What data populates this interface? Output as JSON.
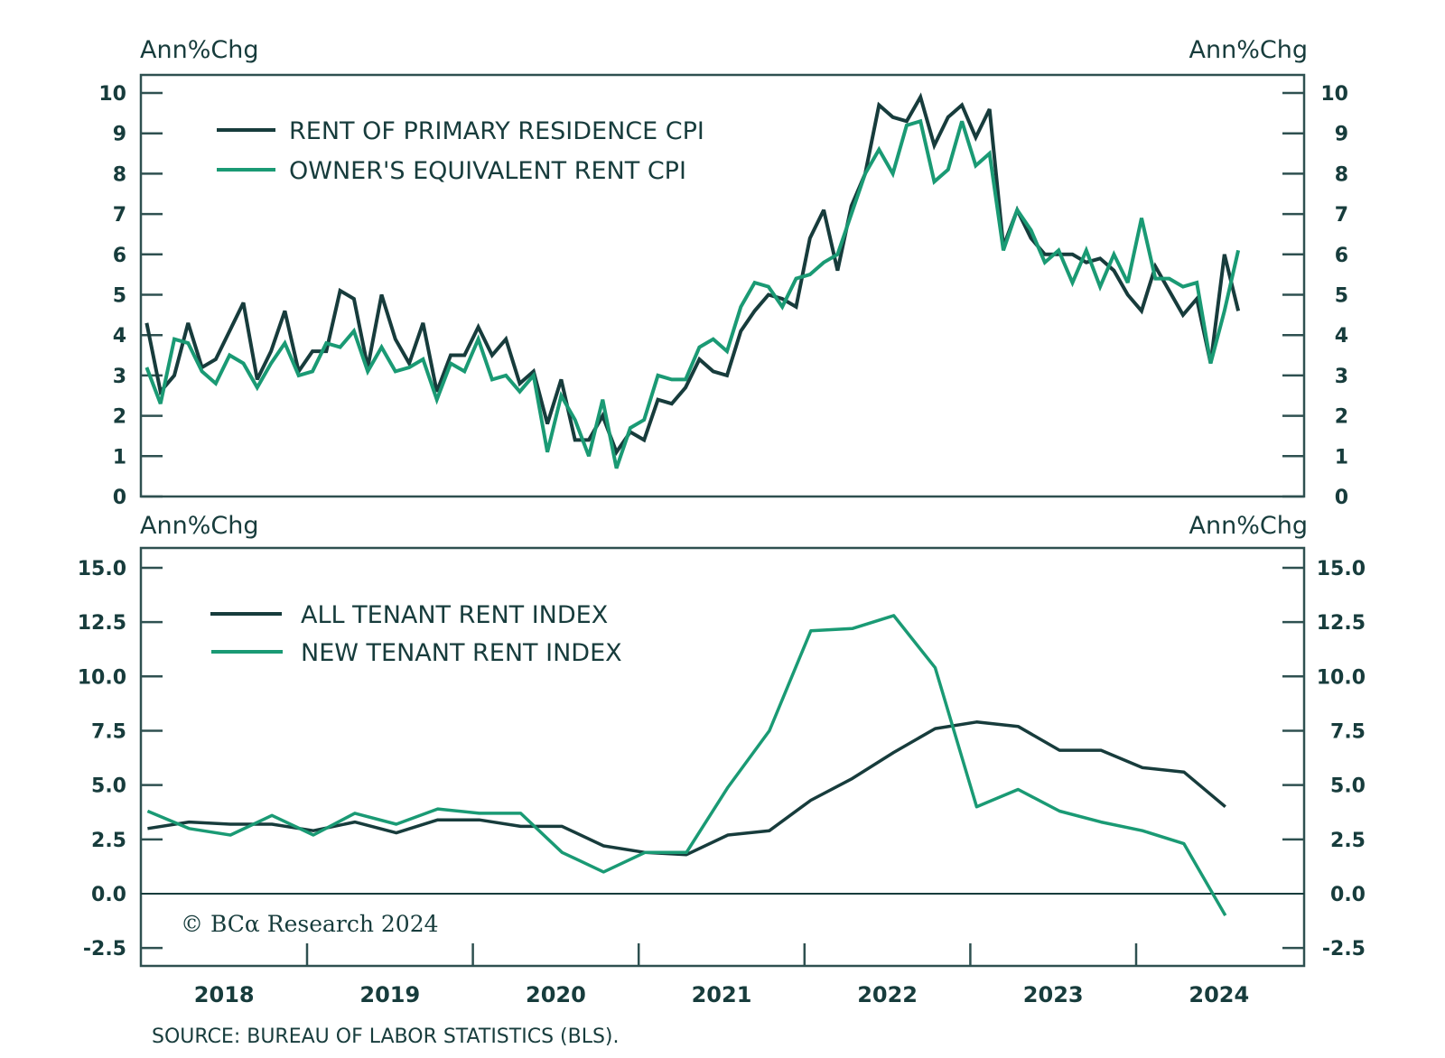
{
  "colors": {
    "dark": "#173c3c",
    "green": "#1a9a74",
    "frame": "#2e5050"
  },
  "source": "SOURCE: BUREAU OF LABOR STATISTICS (BLS).",
  "copyright": "© BCα Research 2024",
  "chart_data": [
    {
      "type": "line",
      "title": "",
      "ylabel_left": "Ann%Chg",
      "ylabel_right": "Ann%Chg",
      "ylim": [
        0,
        10
      ],
      "yticks": [
        0,
        1,
        2,
        3,
        4,
        5,
        6,
        7,
        8,
        9,
        10
      ],
      "ytick_labels": [
        "0",
        "1",
        "2",
        "3",
        "4",
        "5",
        "6",
        "7",
        "8",
        "9",
        "10"
      ],
      "frequency": "monthly",
      "x_start": "2018-01",
      "grid": false,
      "legend_position": "top-left",
      "series": [
        {
          "name": "RENT OF PRIMARY RESIDENCE CPI",
          "color": "#173c3c",
          "values": [
            4.3,
            2.6,
            3.0,
            4.3,
            3.2,
            3.4,
            4.1,
            4.8,
            2.9,
            3.6,
            4.6,
            3.1,
            3.6,
            3.6,
            5.1,
            4.9,
            3.2,
            5.0,
            3.9,
            3.3,
            4.3,
            2.6,
            3.5,
            3.5,
            4.2,
            3.5,
            3.9,
            2.8,
            3.1,
            1.8,
            2.9,
            1.4,
            1.4,
            2.0,
            1.1,
            1.6,
            1.4,
            2.4,
            2.3,
            2.7,
            3.4,
            3.1,
            3.0,
            4.1,
            4.6,
            5.0,
            4.9,
            4.7,
            6.4,
            7.1,
            5.6,
            7.2,
            8.0,
            9.7,
            9.4,
            9.3,
            9.9,
            8.7,
            9.4,
            9.7,
            8.9,
            9.6,
            6.2,
            7.1,
            6.4,
            6.0,
            6.0,
            6.0,
            5.8,
            5.9,
            5.6,
            5.0,
            4.6,
            5.7,
            5.1,
            4.5,
            4.9,
            3.3,
            6.0,
            4.6
          ]
        },
        {
          "name": "OWNER'S EQUIVALENT RENT CPI",
          "color": "#1a9a74",
          "values": [
            3.2,
            2.3,
            3.9,
            3.8,
            3.1,
            2.8,
            3.5,
            3.3,
            2.7,
            3.3,
            3.8,
            3.0,
            3.1,
            3.8,
            3.7,
            4.1,
            3.1,
            3.7,
            3.1,
            3.2,
            3.4,
            2.4,
            3.3,
            3.1,
            3.9,
            2.9,
            3.0,
            2.6,
            3.0,
            1.1,
            2.5,
            1.9,
            1.0,
            2.4,
            0.7,
            1.7,
            1.9,
            3.0,
            2.9,
            2.9,
            3.7,
            3.9,
            3.6,
            4.7,
            5.3,
            5.2,
            4.7,
            5.4,
            5.5,
            5.8,
            6.0,
            7.0,
            8.0,
            8.6,
            8.0,
            9.2,
            9.3,
            7.8,
            8.1,
            9.3,
            8.2,
            8.5,
            6.1,
            7.1,
            6.6,
            5.8,
            6.1,
            5.3,
            6.1,
            5.2,
            6.0,
            5.3,
            6.9,
            5.4,
            5.4,
            5.2,
            5.3,
            3.3,
            4.6,
            6.1
          ]
        }
      ]
    },
    {
      "type": "line",
      "title": "",
      "ylabel_left": "Ann%Chg",
      "ylabel_right": "Ann%Chg",
      "ylim": [
        -3.3,
        16.4
      ],
      "yticks": [
        -2.5,
        0,
        2.5,
        5,
        7.5,
        10,
        12.5,
        15
      ],
      "ytick_labels": [
        "-2.5",
        "0.0",
        "2.5",
        "5.0",
        "7.5",
        "10.0",
        "12.5",
        "15.0"
      ],
      "frequency": "quarterly",
      "x_start": "2018-Q1",
      "grid": false,
      "zero_line": true,
      "legend_position": "top-left",
      "xlabel": "",
      "xtick_labels": [
        "2018",
        "2019",
        "2020",
        "2021",
        "2022",
        "2023",
        "2024"
      ],
      "series": [
        {
          "name": "ALL TENANT RENT INDEX",
          "color": "#173c3c",
          "values": [
            3.0,
            3.3,
            3.2,
            3.2,
            2.9,
            3.3,
            2.8,
            3.4,
            3.4,
            3.1,
            3.1,
            2.2,
            1.9,
            1.8,
            2.7,
            2.9,
            4.3,
            5.3,
            6.5,
            7.6,
            7.9,
            7.7,
            6.6,
            6.6,
            5.8,
            5.6,
            4.0
          ]
        },
        {
          "name": "NEW TENANT RENT INDEX",
          "color": "#1a9a74",
          "values": [
            3.8,
            3.0,
            2.7,
            3.6,
            2.7,
            3.7,
            3.2,
            3.9,
            3.7,
            3.7,
            1.9,
            1.0,
            1.9,
            1.9,
            4.9,
            7.5,
            12.1,
            12.2,
            12.8,
            10.4,
            4.0,
            4.8,
            3.8,
            3.3,
            2.9,
            2.3,
            -1.0
          ]
        }
      ]
    }
  ]
}
